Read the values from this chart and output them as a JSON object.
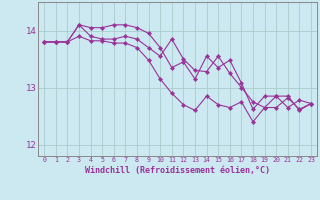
{
  "xlabel": "Windchill (Refroidissement éolien,°C)",
  "background_color": "#cce8f0",
  "grid_color": "#aacccc",
  "line_color": "#993399",
  "xlim": [
    -0.5,
    23.5
  ],
  "ylim": [
    11.8,
    14.5
  ],
  "yticks": [
    12,
    13,
    14
  ],
  "xticks": [
    0,
    1,
    2,
    3,
    4,
    5,
    6,
    7,
    8,
    9,
    10,
    11,
    12,
    13,
    14,
    15,
    16,
    17,
    18,
    19,
    20,
    21,
    22,
    23
  ],
  "series": [
    [
      13.8,
      13.8,
      13.8,
      14.1,
      13.9,
      13.85,
      13.85,
      13.9,
      13.85,
      13.7,
      13.55,
      13.85,
      13.5,
      13.3,
      13.28,
      13.55,
      13.25,
      13.0,
      12.75,
      12.65,
      12.85,
      12.85,
      12.6,
      12.72
    ],
    [
      13.8,
      13.8,
      13.8,
      14.1,
      14.05,
      14.05,
      14.1,
      14.1,
      14.05,
      13.95,
      13.7,
      13.35,
      13.45,
      13.15,
      13.55,
      13.35,
      13.48,
      13.08,
      12.62,
      12.85,
      12.85,
      12.65,
      12.78,
      12.72
    ],
    [
      13.8,
      13.8,
      13.8,
      13.9,
      13.82,
      13.82,
      13.78,
      13.78,
      13.7,
      13.48,
      13.15,
      12.9,
      12.7,
      12.6,
      12.85,
      12.7,
      12.65,
      12.75,
      12.4,
      12.65,
      12.65,
      12.82,
      12.62,
      12.72
    ]
  ],
  "spine_color": "#888888",
  "xlabel_fontsize": 6.0,
  "xtick_fontsize": 4.8,
  "ytick_fontsize": 6.5,
  "linewidth": 0.8,
  "markersize": 2.2
}
